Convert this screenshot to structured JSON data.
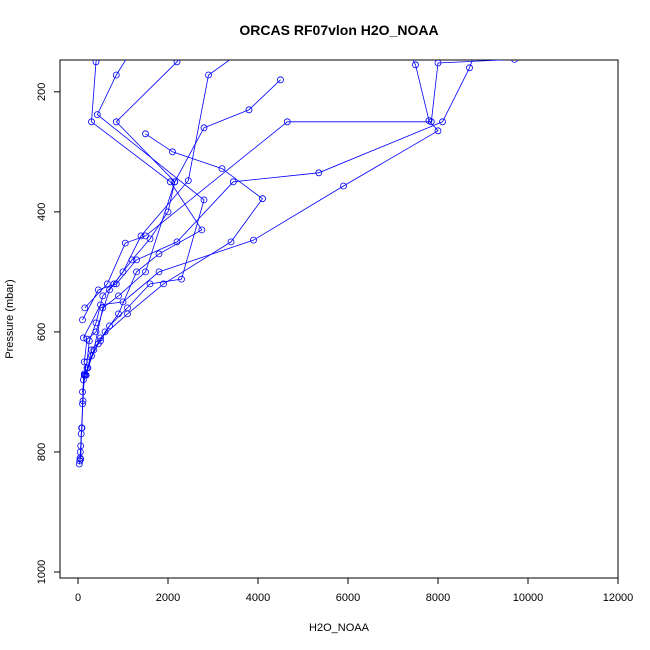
{
  "chart_data": {
    "type": "line",
    "title": "ORCAS RF07vlon H2O_NOAA",
    "xlabel": "H2O_NOAA",
    "ylabel": "Pressure (mbar)",
    "xlim": [
      -400,
      12000
    ],
    "ylim": [
      1010,
      147
    ],
    "y_reversed": true,
    "xticks": [
      0,
      2000,
      4000,
      6000,
      8000,
      10000,
      12000
    ],
    "yticks": [
      200,
      400,
      600,
      800,
      1000
    ],
    "grid": false,
    "legend": "none",
    "color": "#0000ff",
    "series": [
      {
        "points": [
          [
            30,
            820
          ],
          [
            40,
            815
          ],
          [
            45,
            810
          ],
          [
            50,
            800
          ],
          [
            60,
            790
          ],
          [
            70,
            770
          ],
          [
            90,
            760
          ],
          [
            100,
            720
          ],
          [
            120,
            680
          ],
          [
            140,
            670
          ],
          [
            200,
            650
          ],
          [
            250,
            615
          ],
          [
            400,
            585
          ],
          [
            550,
            540
          ],
          [
            800,
            520
          ],
          [
            1200,
            480
          ],
          [
            1600,
            445
          ],
          [
            2000,
            400
          ],
          [
            2150,
            350
          ],
          [
            850,
            250
          ],
          [
            2200,
            150
          ],
          [
            2400,
            130
          ]
        ]
      },
      {
        "points": [
          [
            60,
            812
          ],
          [
            80,
            760
          ],
          [
            110,
            715
          ],
          [
            140,
            672
          ],
          [
            220,
            660
          ],
          [
            300,
            630
          ],
          [
            500,
            615
          ],
          [
            600,
            600
          ],
          [
            900,
            570
          ],
          [
            1300,
            500
          ],
          [
            1800,
            470
          ],
          [
            2750,
            430
          ],
          [
            2050,
            350
          ],
          [
            300,
            250
          ],
          [
            400,
            150
          ],
          [
            500,
            120
          ]
        ]
      },
      {
        "points": [
          [
            100,
            700
          ],
          [
            160,
            672
          ],
          [
            300,
            640
          ],
          [
            450,
            620
          ],
          [
            700,
            590
          ],
          [
            1100,
            560
          ],
          [
            1600,
            520
          ],
          [
            2300,
            512
          ],
          [
            2800,
            380
          ],
          [
            430,
            238
          ],
          [
            850,
            172
          ],
          [
            1200,
            130
          ]
        ]
      },
      {
        "points": [
          [
            140,
            650
          ],
          [
            200,
            612
          ],
          [
            400,
            600
          ],
          [
            700,
            530
          ],
          [
            1000,
            500
          ],
          [
            1400,
            440
          ],
          [
            2450,
            348
          ],
          [
            2900,
            172
          ],
          [
            3500,
            140
          ]
        ]
      },
      {
        "points": [
          [
            180,
            672
          ],
          [
            350,
            630
          ],
          [
            550,
            560
          ],
          [
            900,
            540
          ],
          [
            1500,
            500
          ],
          [
            2150,
            350
          ],
          [
            2800,
            260
          ],
          [
            3800,
            230
          ],
          [
            4500,
            180
          ]
        ]
      },
      {
        "points": [
          [
            200,
            660
          ],
          [
            500,
            610
          ],
          [
            1100,
            570
          ],
          [
            1900,
            520
          ],
          [
            3400,
            450
          ],
          [
            4100,
            378
          ],
          [
            3200,
            328
          ],
          [
            2100,
            300
          ],
          [
            1500,
            270
          ]
        ]
      },
      {
        "points": [
          [
            120,
            610
          ],
          [
            500,
            555
          ],
          [
            1000,
            550
          ],
          [
            1800,
            500
          ],
          [
            3900,
            447
          ],
          [
            5900,
            357
          ],
          [
            8000,
            265
          ],
          [
            7800,
            248
          ],
          [
            7500,
            155
          ],
          [
            7400,
            140
          ]
        ]
      },
      {
        "points": [
          [
            100,
            580
          ],
          [
            450,
            530
          ],
          [
            850,
            520
          ],
          [
            1300,
            480
          ],
          [
            2200,
            450
          ],
          [
            3450,
            350
          ],
          [
            5350,
            335
          ],
          [
            8100,
            250
          ],
          [
            8700,
            160
          ],
          [
            8800,
            140
          ]
        ]
      },
      {
        "points": [
          [
            150,
            560
          ],
          [
            650,
            520
          ],
          [
            1050,
            452
          ],
          [
            1500,
            440
          ],
          [
            4650,
            250
          ],
          [
            7850,
            250
          ],
          [
            8000,
            152
          ],
          [
            9700,
            146
          ],
          [
            9900,
            140
          ]
        ]
      }
    ]
  }
}
